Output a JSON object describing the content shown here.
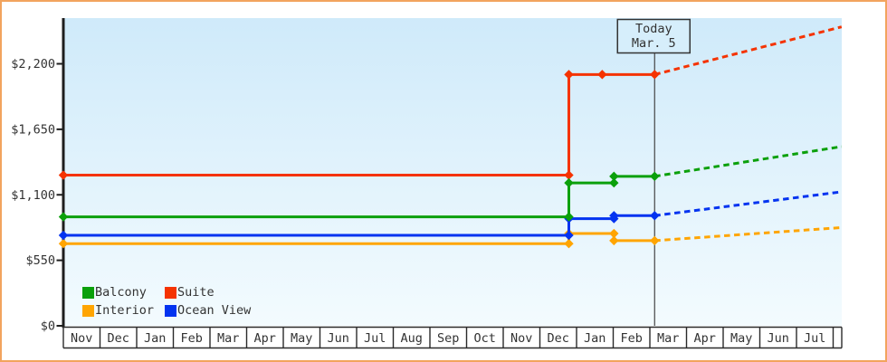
{
  "colors": {
    "frame_border": "#f2a45e",
    "axis": "#1e1e1e",
    "text": "#333333",
    "plot_bg_top": "#cfeafa",
    "plot_bg_bottom": "#f3fbfe",
    "today_box_fill": "#d6eefb",
    "today_line": "#444444"
  },
  "legend": {
    "items": [
      {
        "label": "Balcony",
        "color": "#0ba00b"
      },
      {
        "label": "Suite",
        "color": "#f53300"
      },
      {
        "label": "Interior",
        "color": "#ffa502"
      },
      {
        "label": "Ocean View",
        "color": "#0333f0"
      }
    ]
  },
  "chart_data": {
    "type": "line",
    "x_unit": "months_after_first_Nov",
    "notes": "points are [month_index, price_usd]; 13.79 ~ Dec 24, 14.7 ~ Jan 22, 15.02 ~ Feb 1, 16.13 ~ Mar 5 (today), 21.23 = right edge of plot; prices estimated from gridlines; dashed segments are projected future prices",
    "y_axis": {
      "max": 2200,
      "ticks": [
        {
          "label": "$0",
          "value": 0
        },
        {
          "label": "$550",
          "value": 550
        },
        {
          "label": "$1,100",
          "value": 1100
        },
        {
          "label": "$1,650",
          "value": 1650
        },
        {
          "label": "$2,200",
          "value": 2200
        }
      ]
    },
    "x_axis": {
      "month_labels": [
        "Nov",
        "Dec",
        "Jan",
        "Feb",
        "Mar",
        "Apr",
        "May",
        "Jun",
        "Jul",
        "Aug",
        "Sep",
        "Oct",
        "Nov",
        "Dec",
        "Jan",
        "Feb",
        "Mar",
        "Apr",
        "May",
        "Jun",
        "Jul"
      ]
    },
    "today": {
      "m": 16.13,
      "label_line1": "Today",
      "label_line2": "Mar. 5"
    },
    "series": [
      {
        "name": "Suite",
        "color": "#f53300",
        "points_solid": [
          [
            0,
            1265
          ],
          [
            13.79,
            1265
          ],
          [
            13.79,
            2110
          ],
          [
            16.13,
            2110
          ]
        ],
        "markers": [
          [
            0,
            1265
          ],
          [
            13.79,
            1265
          ],
          [
            13.79,
            2110
          ],
          [
            14.7,
            2110
          ],
          [
            16.13,
            2110
          ]
        ],
        "points_projected": [
          [
            16.13,
            2110
          ],
          [
            21.23,
            2510
          ]
        ]
      },
      {
        "name": "Interior",
        "color": "#ffa502",
        "points_solid": [
          [
            0,
            690
          ],
          [
            13.79,
            690
          ],
          [
            13.79,
            775
          ],
          [
            15.02,
            775
          ],
          [
            15.02,
            715
          ],
          [
            16.13,
            715
          ]
        ],
        "markers": [
          [
            0,
            690
          ],
          [
            13.79,
            690
          ],
          [
            13.79,
            775
          ],
          [
            15.02,
            775
          ],
          [
            15.02,
            715
          ],
          [
            16.13,
            715
          ]
        ],
        "points_projected": [
          [
            16.13,
            715
          ],
          [
            21.23,
            825
          ]
        ]
      },
      {
        "name": "Ocean View",
        "color": "#0333f0",
        "points_solid": [
          [
            0,
            760
          ],
          [
            13.79,
            760
          ],
          [
            13.79,
            900
          ],
          [
            15.02,
            900
          ],
          [
            15.02,
            925
          ],
          [
            16.13,
            925
          ]
        ],
        "markers": [
          [
            0,
            760
          ],
          [
            13.79,
            760
          ],
          [
            13.79,
            900
          ],
          [
            15.02,
            900
          ],
          [
            15.02,
            925
          ],
          [
            16.13,
            925
          ]
        ],
        "points_projected": [
          [
            16.13,
            925
          ],
          [
            21.23,
            1125
          ]
        ]
      },
      {
        "name": "Balcony",
        "color": "#0ba00b",
        "points_solid": [
          [
            0,
            915
          ],
          [
            13.79,
            915
          ],
          [
            13.79,
            1200
          ],
          [
            15.02,
            1200
          ],
          [
            15.02,
            1255
          ],
          [
            16.13,
            1255
          ]
        ],
        "markers": [
          [
            0,
            915
          ],
          [
            13.79,
            915
          ],
          [
            13.79,
            1200
          ],
          [
            15.02,
            1200
          ],
          [
            15.02,
            1255
          ],
          [
            16.13,
            1255
          ]
        ],
        "points_projected": [
          [
            16.13,
            1255
          ],
          [
            21.23,
            1505
          ]
        ]
      }
    ]
  }
}
